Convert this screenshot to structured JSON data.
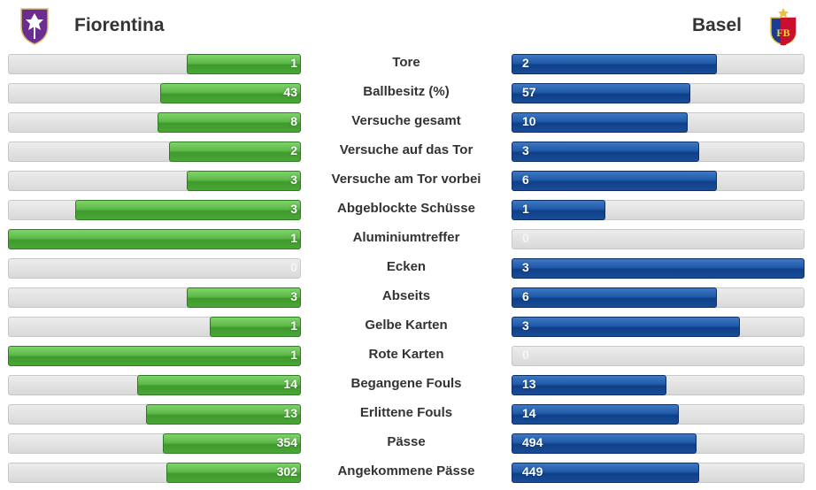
{
  "home": {
    "name": "Fiorentina",
    "color": "#4aa636"
  },
  "away": {
    "name": "Basel",
    "color": "#1a4d96"
  },
  "stats": [
    {
      "label": "Tore",
      "home": 1,
      "away": 2,
      "home_ratio": 0.39,
      "away_ratio": 0.7
    },
    {
      "label": "Ballbesitz (%)",
      "home": 43,
      "away": 57,
      "home_ratio": 0.48,
      "away_ratio": 0.61
    },
    {
      "label": "Versuche gesamt",
      "home": 8,
      "away": 10,
      "home_ratio": 0.49,
      "away_ratio": 0.6
    },
    {
      "label": "Versuche auf das Tor",
      "home": 2,
      "away": 3,
      "home_ratio": 0.45,
      "away_ratio": 0.64
    },
    {
      "label": "Versuche am Tor vorbei",
      "home": 3,
      "away": 6,
      "home_ratio": 0.39,
      "away_ratio": 0.7
    },
    {
      "label": "Abgeblockte Schüsse",
      "home": 3,
      "away": 1,
      "home_ratio": 0.77,
      "away_ratio": 0.32
    },
    {
      "label": "Aluminiumtreffer",
      "home": 1,
      "away": 0,
      "home_ratio": 1.0,
      "away_ratio": 0.0
    },
    {
      "label": "Ecken",
      "home": 0,
      "away": 3,
      "home_ratio": 0.0,
      "away_ratio": 1.0
    },
    {
      "label": "Abseits",
      "home": 3,
      "away": 6,
      "home_ratio": 0.39,
      "away_ratio": 0.7
    },
    {
      "label": "Gelbe Karten",
      "home": 1,
      "away": 3,
      "home_ratio": 0.31,
      "away_ratio": 0.78
    },
    {
      "label": "Rote Karten",
      "home": 1,
      "away": 0,
      "home_ratio": 1.0,
      "away_ratio": 0.0
    },
    {
      "label": "Begangene Fouls",
      "home": 14,
      "away": 13,
      "home_ratio": 0.56,
      "away_ratio": 0.53
    },
    {
      "label": "Erlittene Fouls",
      "home": 13,
      "away": 14,
      "home_ratio": 0.53,
      "away_ratio": 0.57
    },
    {
      "label": "Pässe",
      "home": 354,
      "away": 494,
      "home_ratio": 0.47,
      "away_ratio": 0.63
    },
    {
      "label": "Angekommene Pässe",
      "home": 302,
      "away": 449,
      "home_ratio": 0.46,
      "away_ratio": 0.64
    }
  ]
}
